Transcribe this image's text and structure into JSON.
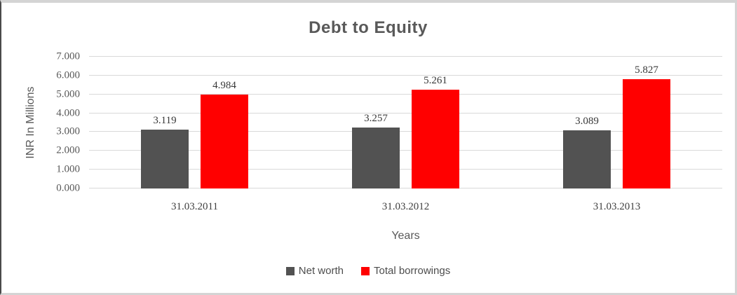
{
  "chart_data": {
    "type": "bar",
    "title": "Debt to Equity",
    "xlabel": "Years",
    "ylabel": "INR In Millions",
    "categories": [
      "31.03.2011",
      "31.03.2012",
      "31.03.2013"
    ],
    "series": [
      {
        "name": "Net worth",
        "color": "#525252",
        "values": [
          3.119,
          3.257,
          3.089
        ]
      },
      {
        "name": "Total borrowings",
        "color": "#ff0000",
        "values": [
          4.984,
          5.261,
          5.827
        ]
      }
    ],
    "ylim": [
      0,
      7
    ],
    "ytick_step": 1,
    "ytick_decimals": 3,
    "value_label_decimals": 3,
    "grid": "horizontal",
    "legend_position": "bottom"
  }
}
